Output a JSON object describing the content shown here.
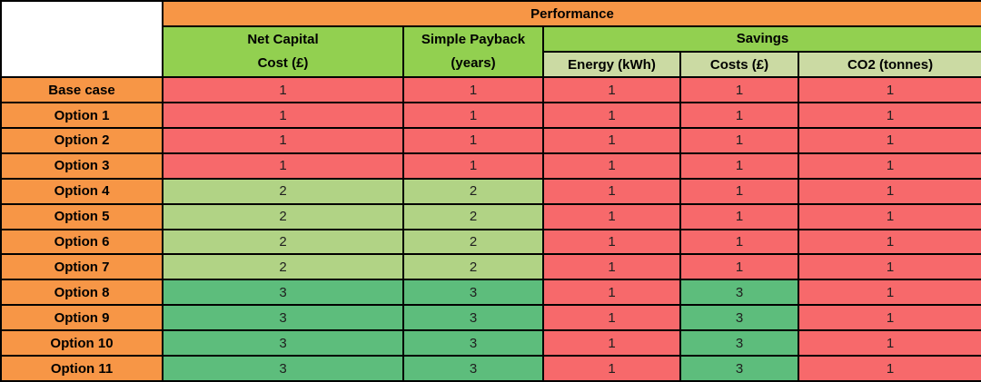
{
  "table": {
    "title": "Performance",
    "headers": {
      "net_capital_line1": "Net Capital",
      "net_capital_line2": "Cost (£)",
      "payback_line1": "Simple Payback",
      "payback_line2": "(years)",
      "savings": "Savings",
      "energy": "Energy (kWh)",
      "costs": "Costs (£)",
      "co2": "CO2 (tonnes)"
    }
  },
  "colors": {
    "header_orange": "#F79646",
    "header_green": "#92D050",
    "subheader_pale_green": "#CBDAA3",
    "row_label_orange": "#F79646",
    "score_1_red": "#F7696B",
    "score_2_light_green": "#B1D385",
    "score_3_green": "#5DBD7C",
    "border_black": "#000000"
  },
  "chart_data": {
    "type": "table",
    "title": "Performance",
    "column_groups": [
      {
        "label": "Performance",
        "span": 5
      },
      {
        "label": "Savings",
        "span": 3,
        "columns": [
          "Energy (kWh)",
          "Costs (£)",
          "CO2 (tonnes)"
        ]
      }
    ],
    "columns": [
      "Net Capital Cost (£)",
      "Simple Payback (years)",
      "Savings Energy (kWh)",
      "Savings Costs (£)",
      "Savings CO2 (tonnes)"
    ],
    "rows": [
      {
        "label": "Base case",
        "values": [
          1,
          1,
          1,
          1,
          1
        ]
      },
      {
        "label": "Option 1",
        "values": [
          1,
          1,
          1,
          1,
          1
        ]
      },
      {
        "label": "Option 2",
        "values": [
          1,
          1,
          1,
          1,
          1
        ]
      },
      {
        "label": "Option 3",
        "values": [
          1,
          1,
          1,
          1,
          1
        ]
      },
      {
        "label": "Option 4",
        "values": [
          2,
          2,
          1,
          1,
          1
        ]
      },
      {
        "label": "Option 5",
        "values": [
          2,
          2,
          1,
          1,
          1
        ]
      },
      {
        "label": "Option 6",
        "values": [
          2,
          2,
          1,
          1,
          1
        ]
      },
      {
        "label": "Option 7",
        "values": [
          2,
          2,
          1,
          1,
          1
        ]
      },
      {
        "label": "Option 8",
        "values": [
          3,
          3,
          1,
          3,
          1
        ]
      },
      {
        "label": "Option 9",
        "values": [
          3,
          3,
          1,
          3,
          1
        ]
      },
      {
        "label": "Option 10",
        "values": [
          3,
          3,
          1,
          3,
          1
        ]
      },
      {
        "label": "Option 11",
        "values": [
          3,
          3,
          1,
          3,
          1
        ]
      }
    ],
    "color_scale": {
      "1": "#F7696B",
      "2": "#B1D385",
      "3": "#5DBD7C"
    },
    "legend_position": "none",
    "grid": true
  }
}
